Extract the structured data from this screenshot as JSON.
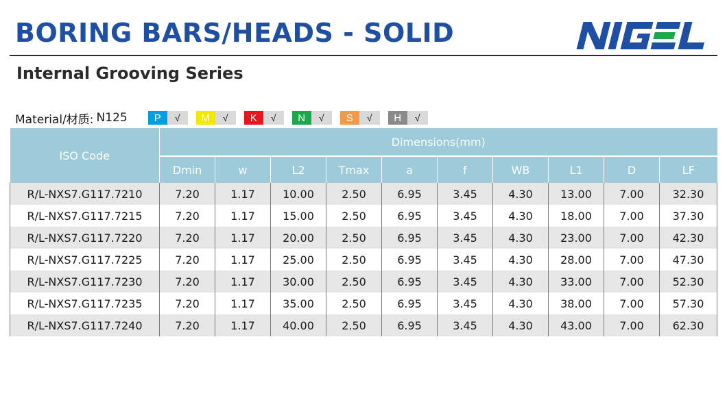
{
  "header": {
    "title": "BORING BARS/HEADS - SOLID",
    "subtitle": "Internal Grooving Series",
    "logo_text": "NIGEL"
  },
  "material": {
    "label": "Material/材质:",
    "grade": "N125",
    "badges": [
      {
        "code": "P",
        "check": "√",
        "color": "#00a0e0"
      },
      {
        "code": "M",
        "check": "√",
        "color": "#f5e800"
      },
      {
        "code": "K",
        "check": "√",
        "color": "#e8141e"
      },
      {
        "code": "N",
        "check": "√",
        "color": "#1aa84a"
      },
      {
        "code": "S",
        "check": "√",
        "color": "#f39a4a"
      },
      {
        "code": "H",
        "check": "√",
        "color": "#8a8a8a"
      }
    ]
  },
  "table": {
    "iso_header": "ISO Code",
    "dimensions_header": "Dimensions(mm)",
    "columns": [
      "Dmin",
      "w",
      "L2",
      "Tmax",
      "a",
      "f",
      "WB",
      "L1",
      "D",
      "LF"
    ],
    "rows": [
      [
        "R/L-NXS7.G117.7210",
        "7.20",
        "1.17",
        "10.00",
        "2.50",
        "6.95",
        "3.45",
        "4.30",
        "13.00",
        "7.00",
        "32.30"
      ],
      [
        "R/L-NXS7.G117.7215",
        "7.20",
        "1.17",
        "15.00",
        "2.50",
        "6.95",
        "3.45",
        "4.30",
        "18.00",
        "7.00",
        "37.30"
      ],
      [
        "R/L-NXS7.G117.7220",
        "7.20",
        "1.17",
        "20.00",
        "2.50",
        "6.95",
        "3.45",
        "4.30",
        "23.00",
        "7.00",
        "42.30"
      ],
      [
        "R/L-NXS7.G117.7225",
        "7.20",
        "1.17",
        "25.00",
        "2.50",
        "6.95",
        "3.45",
        "4.30",
        "28.00",
        "7.00",
        "47.30"
      ],
      [
        "R/L-NXS7.G117.7230",
        "7.20",
        "1.17",
        "30.00",
        "2.50",
        "6.95",
        "3.45",
        "4.30",
        "33.00",
        "7.00",
        "52.30"
      ],
      [
        "R/L-NXS7.G117.7235",
        "7.20",
        "1.17",
        "35.00",
        "2.50",
        "6.95",
        "3.45",
        "4.30",
        "38.00",
        "7.00",
        "57.30"
      ],
      [
        "R/L-NXS7.G117.7240",
        "7.20",
        "1.17",
        "40.00",
        "2.50",
        "6.95",
        "3.45",
        "4.30",
        "43.00",
        "7.00",
        "62.30"
      ]
    ]
  },
  "colors": {
    "title_blue": "#1f4fa3",
    "header_fill": "#9dcbd9",
    "logo_blue": "#1f4fa3",
    "logo_green": "#1aa84a"
  }
}
